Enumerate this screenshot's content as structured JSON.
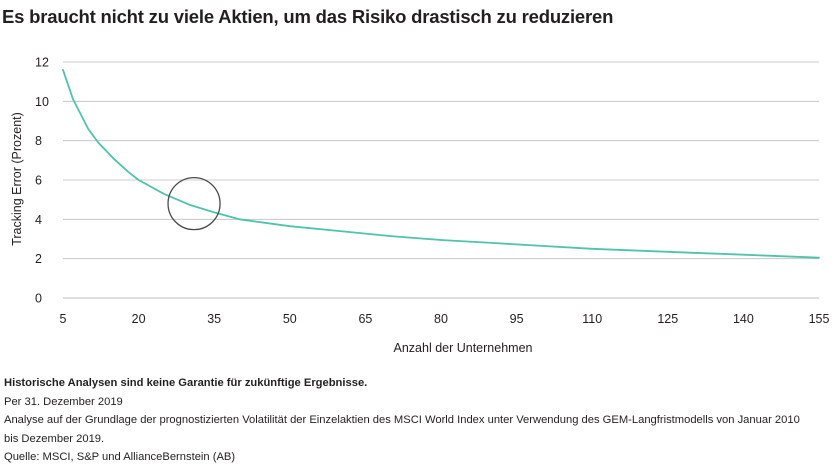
{
  "title": "Es braucht nicht zu viele Aktien, um das Risiko drastisch zu reduzieren",
  "colors": {
    "line": "#4fc3ac",
    "grid": "#bcbec0",
    "text": "#231f20",
    "circle": "#4a4a4a"
  },
  "chart_data": {
    "type": "line",
    "xlabel": "Anzahl der Unternehmen",
    "ylabel": "Tracking Error (Prozent)",
    "xlim": [
      5,
      155
    ],
    "ylim": [
      0,
      12
    ],
    "xticks": [
      5,
      20,
      35,
      50,
      65,
      80,
      95,
      110,
      125,
      140,
      155
    ],
    "yticks": [
      0,
      2,
      4,
      6,
      8,
      10,
      12
    ],
    "grid": "horizontal",
    "series": [
      {
        "x": [
          5,
          7,
          10,
          12,
          15,
          18,
          20,
          25,
          30,
          35,
          40,
          50,
          60,
          70,
          80,
          90,
          100,
          110,
          120,
          130,
          140,
          150,
          155
        ],
        "y": [
          11.6,
          10.1,
          8.6,
          7.9,
          7.1,
          6.4,
          6.0,
          5.3,
          4.75,
          4.35,
          4.0,
          3.65,
          3.4,
          3.15,
          2.95,
          2.8,
          2.65,
          2.5,
          2.4,
          2.3,
          2.2,
          2.1,
          2.05
        ]
      }
    ],
    "annotations": [
      {
        "type": "circle",
        "x": 31,
        "y": 4.8
      }
    ]
  },
  "notes": {
    "disclaimer": "Historische Analysen sind keine Garantie für zukünftige Ergebnisse.",
    "date": "Per 31. Dezember 2019",
    "analysis_line1": "Analyse auf der Grundlage der prognostizierten Volatilität der Einzelaktien des MSCI World Index unter Verwendung des GEM-Langfristmodells von Januar 2010",
    "analysis_line2": "bis Dezember 2019.",
    "source": "Quelle: MSCI, S&P und AllianceBernstein (AB)"
  }
}
